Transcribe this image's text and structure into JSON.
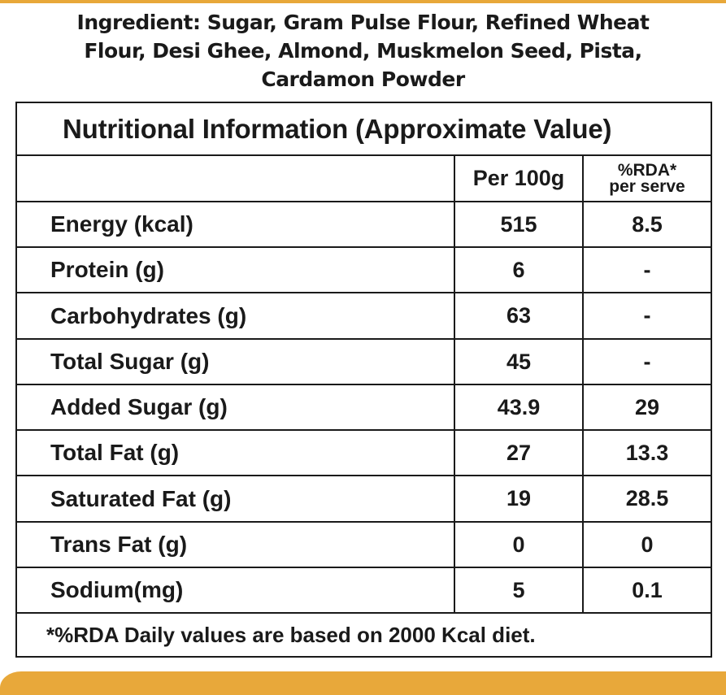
{
  "ingredients": {
    "lines": [
      "Ingredient: Sugar, Gram Pulse Flour, Refined Wheat",
      "Flour, Desi Ghee, Almond, Muskmelon Seed, Pista,",
      "Cardamon Powder"
    ]
  },
  "table": {
    "title": "Nutritional Information (Approximate Value)",
    "col_per": "Per 100g",
    "col_rda_line1": "%RDA*",
    "col_rda_line2": "per serve",
    "rows": [
      {
        "name": "Energy (kcal)",
        "per100g": "515",
        "rda": "8.5"
      },
      {
        "name": "Protein (g)",
        "per100g": "6",
        "rda": "-"
      },
      {
        "name": "Carbohydrates (g)",
        "per100g": "63",
        "rda": "-"
      },
      {
        "name": "Total Sugar (g)",
        "per100g": "45",
        "rda": "-"
      },
      {
        "name": "Added Sugar (g)",
        "per100g": "43.9",
        "rda": "29"
      },
      {
        "name": "Total Fat (g)",
        "per100g": "27",
        "rda": "13.3"
      },
      {
        "name": "Saturated Fat (g)",
        "per100g": "19",
        "rda": "28.5"
      },
      {
        "name": "Trans Fat (g)",
        "per100g": "0",
        "rda": "0"
      },
      {
        "name": "Sodium(mg)",
        "per100g": "5",
        "rda": "0.1"
      }
    ],
    "footnote": "*%RDA Daily values are based on 2000 Kcal diet."
  },
  "colors": {
    "accent": "#E8A83A",
    "text": "#1a1a1a",
    "background": "#ffffff"
  }
}
